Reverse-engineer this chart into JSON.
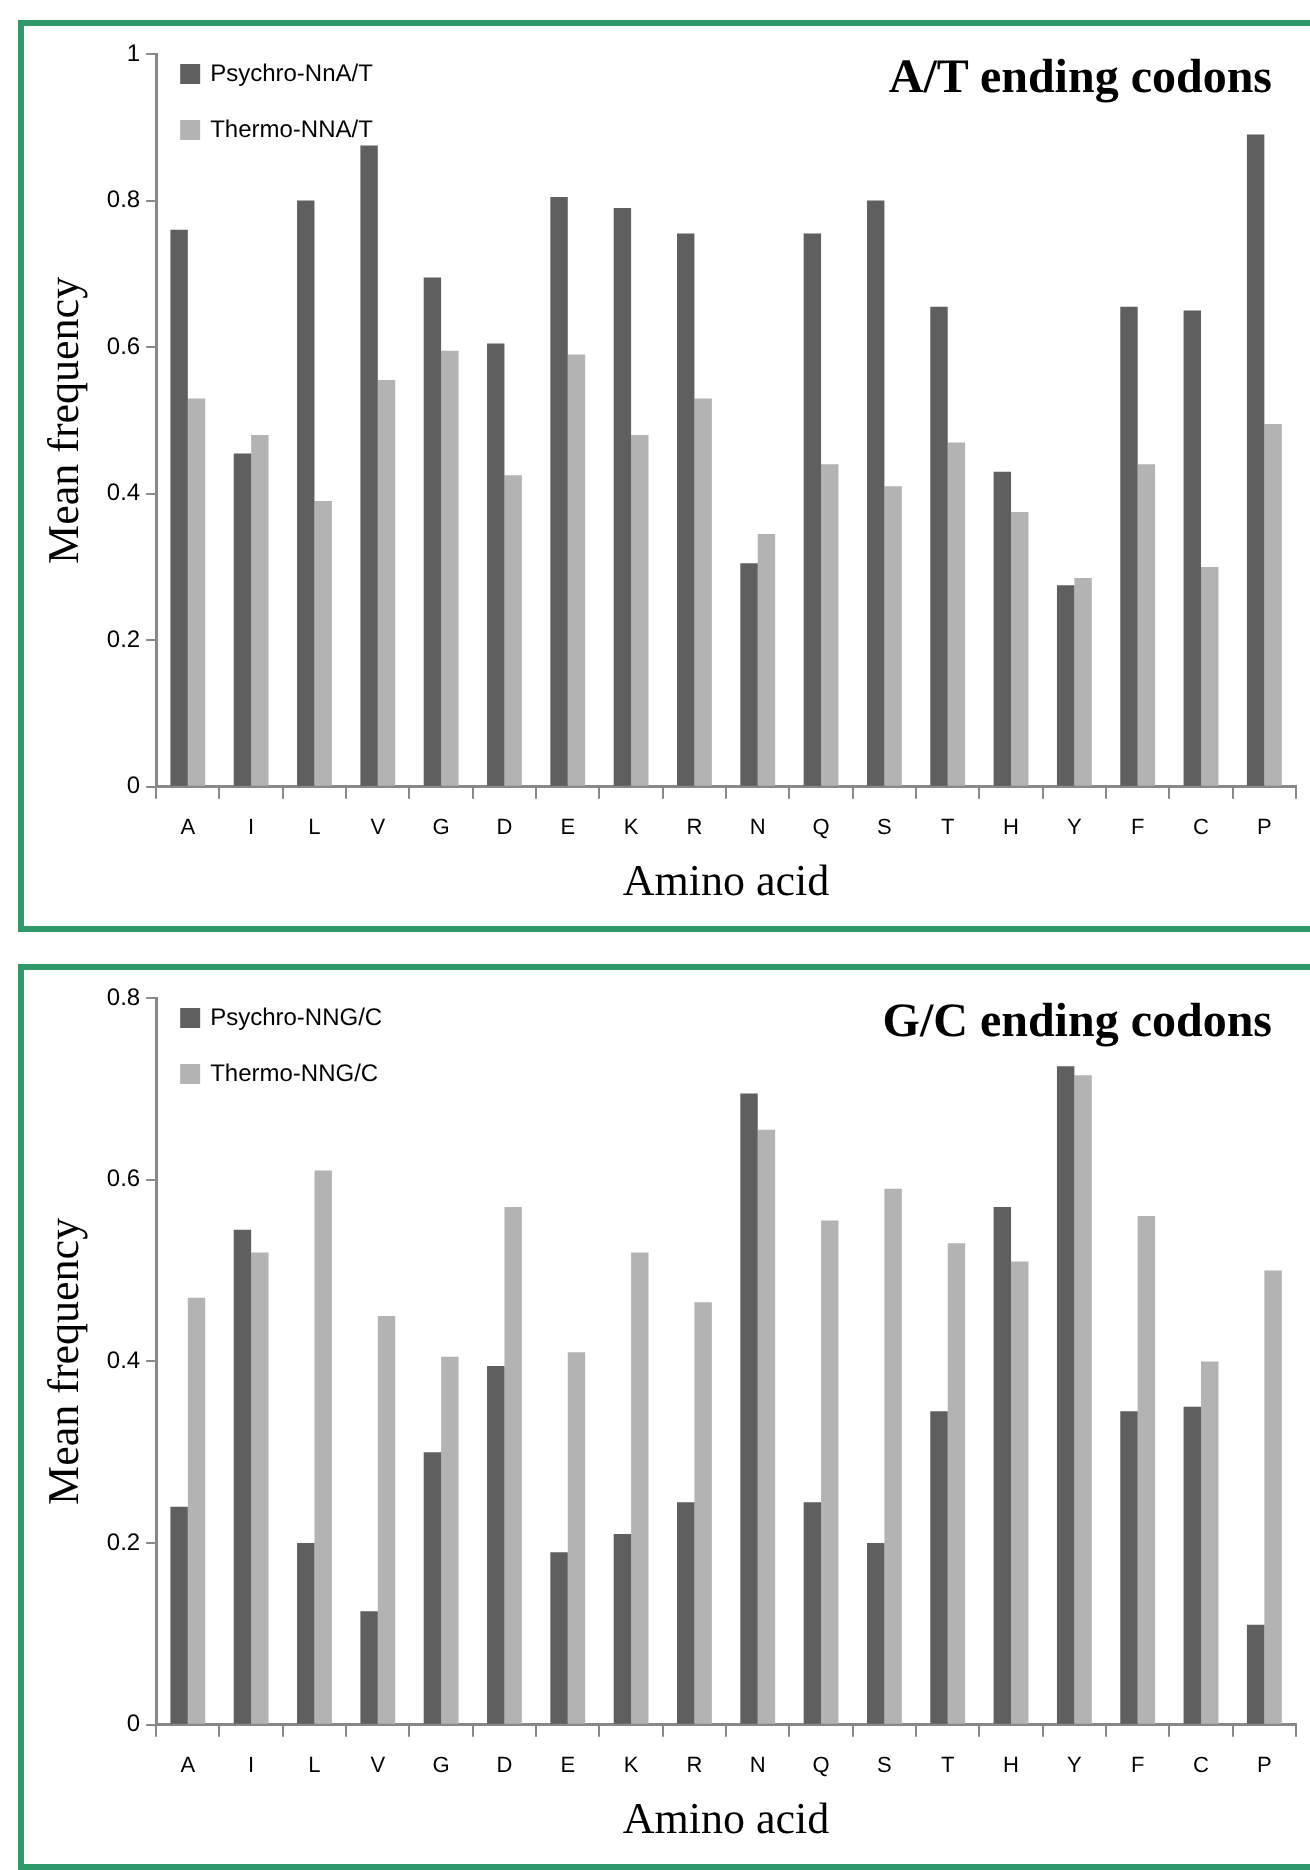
{
  "chart_data": [
    {
      "type": "bar",
      "title": "A/T ending codons",
      "xlabel": "Amino acid",
      "ylabel": "Mean frequency",
      "categories": [
        "A",
        "I",
        "L",
        "V",
        "G",
        "D",
        "E",
        "K",
        "R",
        "N",
        "Q",
        "S",
        "T",
        "H",
        "Y",
        "F",
        "C",
        "P"
      ],
      "series": [
        {
          "name": "Psychro-NnA/T",
          "color": "#5f5f5f",
          "values": [
            0.76,
            0.455,
            0.8,
            0.875,
            0.695,
            0.605,
            0.805,
            0.79,
            0.755,
            0.305,
            0.755,
            0.8,
            0.655,
            0.43,
            0.275,
            0.655,
            0.65,
            0.89
          ]
        },
        {
          "name": "Thermo-NNA/T",
          "color": "#b3b3b3",
          "values": [
            0.53,
            0.48,
            0.39,
            0.555,
            0.595,
            0.425,
            0.59,
            0.48,
            0.53,
            0.345,
            0.44,
            0.41,
            0.47,
            0.375,
            0.285,
            0.44,
            0.3,
            0.495
          ]
        }
      ],
      "ylim": [
        0,
        1
      ],
      "yticks": [
        0,
        0.2,
        0.4,
        0.6,
        0.8,
        1
      ],
      "grid": false,
      "legend": "top left"
    },
    {
      "type": "bar",
      "title": "G/C ending codons",
      "xlabel": "Amino acid",
      "ylabel": "Mean frequency",
      "categories": [
        "A",
        "I",
        "L",
        "V",
        "G",
        "D",
        "E",
        "K",
        "R",
        "N",
        "Q",
        "S",
        "T",
        "H",
        "Y",
        "F",
        "C",
        "P"
      ],
      "series": [
        {
          "name": "Psychro-NNG/C",
          "color": "#5f5f5f",
          "values": [
            0.24,
            0.545,
            0.2,
            0.125,
            0.3,
            0.395,
            0.19,
            0.21,
            0.245,
            0.695,
            0.245,
            0.2,
            0.345,
            0.57,
            0.725,
            0.345,
            0.35,
            0.11
          ]
        },
        {
          "name": "Thermo-NNG/C",
          "color": "#b3b3b3",
          "values": [
            0.47,
            0.52,
            0.61,
            0.45,
            0.405,
            0.57,
            0.41,
            0.52,
            0.465,
            0.655,
            0.555,
            0.59,
            0.53,
            0.51,
            0.715,
            0.56,
            0.4,
            0.5
          ]
        }
      ],
      "ylim": [
        0,
        0.8
      ],
      "yticks": [
        0,
        0.2,
        0.4,
        0.6,
        0.8
      ],
      "grid": false,
      "legend": "top left"
    }
  ]
}
